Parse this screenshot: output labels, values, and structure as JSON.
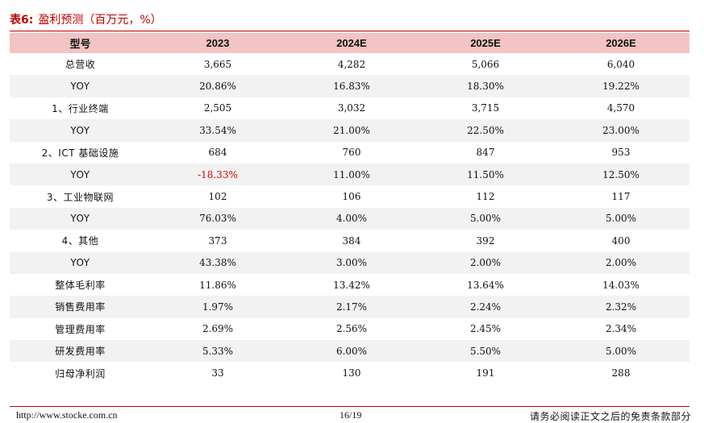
{
  "title": {
    "number": "表6:",
    "text": "盈利预测（百万元，%）"
  },
  "table": {
    "headers": [
      "型号",
      "2023",
      "2024E",
      "2025E",
      "2026E"
    ],
    "rows": [
      {
        "label": "总营收",
        "values": [
          "3,665",
          "4,282",
          "5,066",
          "6,040"
        ],
        "negative": [
          false,
          false,
          false,
          false
        ]
      },
      {
        "label": "YOY",
        "values": [
          "20.86%",
          "16.83%",
          "18.30%",
          "19.22%"
        ],
        "negative": [
          false,
          false,
          false,
          false
        ]
      },
      {
        "label": "1、行业终端",
        "values": [
          "2,505",
          "3,032",
          "3,715",
          "4,570"
        ],
        "negative": [
          false,
          false,
          false,
          false
        ]
      },
      {
        "label": "YOY",
        "values": [
          "33.54%",
          "21.00%",
          "22.50%",
          "23.00%"
        ],
        "negative": [
          false,
          false,
          false,
          false
        ]
      },
      {
        "label": "2、ICT 基础设施",
        "values": [
          "684",
          "760",
          "847",
          "953"
        ],
        "negative": [
          false,
          false,
          false,
          false
        ]
      },
      {
        "label": "YOY",
        "values": [
          "-18.33%",
          "11.00%",
          "11.50%",
          "12.50%"
        ],
        "negative": [
          true,
          false,
          false,
          false
        ]
      },
      {
        "label": "3、工业物联网",
        "values": [
          "102",
          "106",
          "112",
          "117"
        ],
        "negative": [
          false,
          false,
          false,
          false
        ]
      },
      {
        "label": "YOY",
        "values": [
          "76.03%",
          "4.00%",
          "5.00%",
          "5.00%"
        ],
        "negative": [
          false,
          false,
          false,
          false
        ]
      },
      {
        "label": "4、其他",
        "values": [
          "373",
          "384",
          "392",
          "400"
        ],
        "negative": [
          false,
          false,
          false,
          false
        ]
      },
      {
        "label": "YOY",
        "values": [
          "43.38%",
          "3.00%",
          "2.00%",
          "2.00%"
        ],
        "negative": [
          false,
          false,
          false,
          false
        ]
      },
      {
        "label": "整体毛利率",
        "values": [
          "11.86%",
          "13.42%",
          "13.64%",
          "14.03%"
        ],
        "negative": [
          false,
          false,
          false,
          false
        ]
      },
      {
        "label": "销售费用率",
        "values": [
          "1.97%",
          "2.17%",
          "2.24%",
          "2.32%"
        ],
        "negative": [
          false,
          false,
          false,
          false
        ]
      },
      {
        "label": "管理费用率",
        "values": [
          "2.69%",
          "2.56%",
          "2.45%",
          "2.34%"
        ],
        "negative": [
          false,
          false,
          false,
          false
        ]
      },
      {
        "label": "研发费用率",
        "values": [
          "5.33%",
          "6.00%",
          "5.50%",
          "5.00%"
        ],
        "negative": [
          false,
          false,
          false,
          false
        ]
      },
      {
        "label": "归母净利润",
        "values": [
          "33",
          "130",
          "191",
          "288"
        ],
        "negative": [
          false,
          false,
          false,
          false
        ]
      }
    ]
  },
  "footer": {
    "url": "http://www.stocke.com.cn",
    "page": "16/19",
    "disclaimer": "请务必阅读正文之后的免责条款部分"
  },
  "colors": {
    "accent": "#c00000",
    "header_bg": "#f2c4c4",
    "stripe_bg": "#f2f2f2",
    "negative": "#e00000"
  }
}
